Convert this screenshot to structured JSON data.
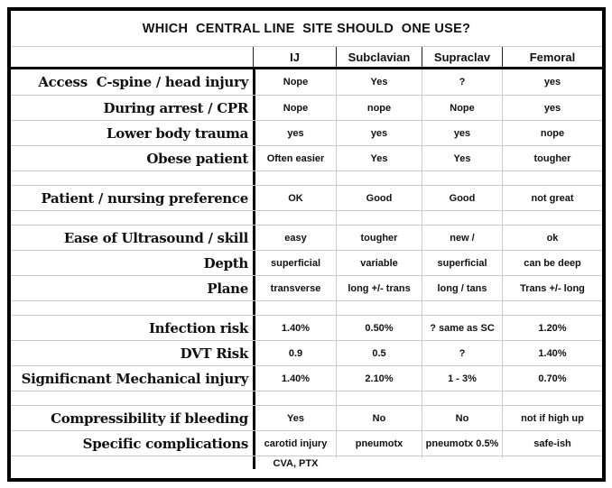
{
  "title": "WHICH  CENTRAL LINE  SITE SHOULD  ONE USE?",
  "columns": [
    "IJ",
    "Subclavian",
    "Supraclav",
    "Femoral"
  ],
  "rows": [
    {
      "kind": "normal",
      "label": "Access  C-spine / head injury",
      "values": [
        "Nope",
        "Yes",
        "?",
        "yes"
      ]
    },
    {
      "kind": "normal",
      "label": "During arrest / CPR",
      "values": [
        "Nope",
        "nope",
        "Nope",
        "yes"
      ]
    },
    {
      "kind": "normal",
      "label": "Lower body trauma",
      "values": [
        "yes",
        "yes",
        "yes",
        "nope"
      ]
    },
    {
      "kind": "normal",
      "label": "Obese patient",
      "values": [
        "Often easier",
        "Yes",
        "Yes",
        "tougher"
      ]
    },
    {
      "kind": "spacer",
      "label": "",
      "values": [
        "",
        "",
        "",
        ""
      ]
    },
    {
      "kind": "normal",
      "label": "Patient / nursing preference",
      "values": [
        "OK",
        "Good",
        "Good",
        "not great"
      ]
    },
    {
      "kind": "spacer",
      "label": "",
      "values": [
        "",
        "",
        "",
        ""
      ]
    },
    {
      "kind": "normal",
      "label": "Ease of Ultrasound / skill",
      "values": [
        "easy",
        "tougher",
        "new /",
        "ok"
      ]
    },
    {
      "kind": "normal",
      "label": "Depth",
      "values": [
        "superficial",
        "variable",
        "superficial",
        "can be deep"
      ]
    },
    {
      "kind": "normal",
      "label": "Plane",
      "values": [
        "transverse",
        "long +/- trans",
        "long / tans",
        "Trans +/- long"
      ]
    },
    {
      "kind": "spacer",
      "label": "",
      "values": [
        "",
        "",
        "",
        ""
      ]
    },
    {
      "kind": "normal",
      "label": "Infection risk",
      "values": [
        "1.40%",
        "0.50%",
        "? same as SC",
        "1.20%"
      ]
    },
    {
      "kind": "normal",
      "label": "DVT Risk",
      "values": [
        "0.9",
        "0.5",
        "?",
        "1.40%"
      ]
    },
    {
      "kind": "normal",
      "label": "Significnant Mechanical injury",
      "values": [
        "1.40%",
        "2.10%",
        "1 - 3%",
        "0.70%"
      ]
    },
    {
      "kind": "spacer",
      "label": "",
      "values": [
        "",
        "",
        "",
        ""
      ]
    },
    {
      "kind": "normal",
      "label": "Compressibility if bleeding",
      "values": [
        "Yes",
        "No",
        "No",
        "not if high up"
      ]
    },
    {
      "kind": "normal",
      "label": "Specific complications",
      "values": [
        "carotid injury",
        "pneumotx",
        "pneumotx 0.5%",
        "safe-ish"
      ]
    },
    {
      "kind": "last",
      "label": "",
      "values": [
        "CVA, PTX",
        "",
        "",
        ""
      ]
    }
  ],
  "colors": {
    "background": "#ffffff",
    "border": "#000000",
    "grid": "#cccccc",
    "header_divider": "#222222",
    "text": "#111111"
  }
}
